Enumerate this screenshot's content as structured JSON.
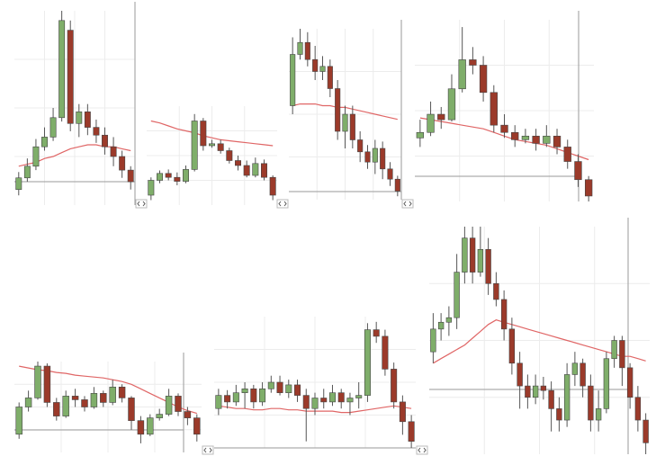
{
  "chart_data": [
    {
      "type": "candlestick",
      "ylim": [
        0,
        100
      ],
      "up_color": "#7fae6a",
      "down_color": "#9b3a2a",
      "ma_color": "#e06666",
      "open": [
        8,
        14,
        20,
        30,
        35,
        45,
        90,
        42,
        48,
        40,
        36,
        30,
        25,
        18
      ],
      "high": [
        17,
        24,
        34,
        40,
        50,
        100,
        95,
        52,
        52,
        44,
        40,
        35,
        28,
        20
      ],
      "low": [
        5,
        12,
        18,
        28,
        33,
        43,
        38,
        35,
        36,
        32,
        26,
        20,
        14,
        8
      ],
      "close": [
        14,
        20,
        30,
        35,
        45,
        95,
        42,
        48,
        40,
        36,
        30,
        25,
        18,
        12
      ],
      "ma": [
        20,
        21,
        22,
        24,
        25,
        27,
        29,
        30,
        31,
        31,
        30,
        30,
        29,
        28
      ]
    },
    {
      "type": "candlestick",
      "ylim": [
        0,
        100
      ],
      "up_color": "#7fae6a",
      "down_color": "#9b3a2a",
      "ma_color": "#e06666",
      "open": [
        10,
        25,
        32,
        28,
        24,
        36,
        85,
        60,
        62,
        55,
        45,
        40,
        30,
        42,
        28
      ],
      "high": [
        28,
        35,
        36,
        33,
        40,
        92,
        88,
        66,
        66,
        58,
        50,
        45,
        48,
        46,
        30
      ],
      "low": [
        5,
        22,
        25,
        20,
        22,
        34,
        55,
        58,
        52,
        42,
        35,
        28,
        28,
        25,
        5
      ],
      "close": [
        25,
        32,
        28,
        24,
        36,
        85,
        60,
        62,
        55,
        45,
        40,
        30,
        42,
        28,
        10
      ],
      "ma": [
        85,
        83,
        80,
        77,
        75,
        73,
        70,
        68,
        66,
        65,
        64,
        63,
        62,
        61,
        60
      ]
    },
    {
      "type": "candlestick",
      "ylim": [
        0,
        100
      ],
      "up_color": "#7fae6a",
      "down_color": "#9b3a2a",
      "ma_color": "#e06666",
      "open": [
        55,
        85,
        92,
        82,
        75,
        78,
        65,
        40,
        50,
        35,
        28,
        22,
        30,
        18,
        12
      ],
      "high": [
        95,
        100,
        98,
        90,
        84,
        82,
        70,
        55,
        55,
        40,
        32,
        35,
        34,
        22,
        14
      ],
      "low": [
        50,
        82,
        78,
        70,
        70,
        60,
        35,
        30,
        30,
        22,
        18,
        15,
        12,
        8,
        2
      ],
      "close": [
        85,
        92,
        82,
        75,
        78,
        65,
        40,
        50,
        35,
        28,
        22,
        30,
        18,
        12,
        5
      ],
      "ma": [
        55,
        56,
        56,
        56,
        55,
        55,
        54,
        54,
        53,
        52,
        51,
        50,
        49,
        48,
        47
      ]
    },
    {
      "type": "candlestick",
      "ylim": [
        0,
        100
      ],
      "up_color": "#7fae6a",
      "down_color": "#9b3a2a",
      "ma_color": "#e06666",
      "open": [
        35,
        38,
        48,
        45,
        62,
        78,
        75,
        60,
        42,
        38,
        34,
        36,
        32,
        36,
        30,
        22,
        12
      ],
      "high": [
        45,
        55,
        52,
        70,
        96,
        85,
        80,
        64,
        48,
        42,
        40,
        40,
        42,
        40,
        34,
        26,
        14
      ],
      "low": [
        30,
        36,
        40,
        44,
        60,
        70,
        55,
        38,
        35,
        30,
        32,
        28,
        30,
        26,
        18,
        8,
        0
      ],
      "close": [
        38,
        48,
        45,
        62,
        78,
        75,
        60,
        42,
        38,
        34,
        36,
        32,
        36,
        30,
        22,
        12,
        3
      ],
      "ma": [
        46,
        45,
        44,
        43,
        42,
        41,
        40,
        38,
        36,
        34,
        33,
        32,
        31,
        29,
        27,
        25,
        23
      ]
    },
    {
      "type": "candlestick",
      "ylim": [
        0,
        100
      ],
      "up_color": "#7fae6a",
      "down_color": "#9b3a2a",
      "ma_color": "#e06666",
      "open": [
        20,
        50,
        60,
        95,
        55,
        40,
        62,
        58,
        50,
        65,
        55,
        72,
        60,
        35,
        20,
        38,
        42,
        62,
        45,
        38
      ],
      "high": [
        55,
        68,
        100,
        98,
        60,
        68,
        70,
        62,
        72,
        68,
        80,
        75,
        62,
        40,
        42,
        48,
        70,
        65,
        50,
        42
      ],
      "low": [
        15,
        45,
        58,
        50,
        35,
        38,
        50,
        45,
        48,
        50,
        52,
        55,
        25,
        10,
        18,
        35,
        40,
        40,
        30,
        12
      ],
      "close": [
        50,
        60,
        95,
        55,
        40,
        62,
        58,
        50,
        65,
        55,
        72,
        60,
        35,
        20,
        38,
        42,
        62,
        45,
        38,
        20
      ],
      "ma": [
        95,
        93,
        91,
        90,
        88,
        87,
        85,
        84,
        83,
        82,
        80,
        78,
        75,
        70,
        65,
        60,
        55,
        50,
        46,
        43
      ]
    },
    {
      "type": "candlestick",
      "ylim": [
        0,
        100
      ],
      "up_color": "#7fae6a",
      "down_color": "#9b3a2a",
      "ma_color": "#e06666",
      "open": [
        30,
        40,
        35,
        42,
        45,
        35,
        45,
        50,
        42,
        48,
        40,
        30,
        38,
        35,
        42,
        35,
        38,
        40,
        90,
        85,
        60,
        35,
        20
      ],
      "high": [
        45,
        44,
        48,
        50,
        48,
        50,
        55,
        55,
        52,
        52,
        45,
        42,
        45,
        48,
        45,
        42,
        50,
        95,
        96,
        90,
        65,
        40,
        25
      ],
      "low": [
        25,
        30,
        32,
        30,
        30,
        32,
        42,
        40,
        38,
        35,
        5,
        25,
        30,
        32,
        30,
        25,
        30,
        35,
        80,
        55,
        30,
        10,
        0
      ],
      "close": [
        40,
        35,
        42,
        45,
        35,
        45,
        50,
        42,
        48,
        40,
        30,
        38,
        35,
        42,
        35,
        38,
        40,
        90,
        85,
        60,
        35,
        20,
        5
      ],
      "ma": [
        32,
        31,
        30,
        30,
        29,
        29,
        30,
        30,
        29,
        29,
        28,
        28,
        28,
        28,
        27,
        27,
        28,
        29,
        30,
        31,
        32,
        31,
        30
      ]
    },
    {
      "type": "candlestick",
      "ylim": [
        0,
        100
      ],
      "up_color": "#7fae6a",
      "down_color": "#9b3a2a",
      "ma_color": "#e06666",
      "open": [
        45,
        55,
        58,
        60,
        80,
        95,
        80,
        90,
        75,
        68,
        55,
        40,
        30,
        25,
        30,
        28,
        20,
        15,
        35,
        40,
        30,
        15,
        20,
        42,
        50,
        38,
        25,
        15
      ],
      "high": [
        62,
        62,
        65,
        88,
        100,
        100,
        100,
        95,
        80,
        72,
        60,
        45,
        35,
        35,
        34,
        32,
        25,
        40,
        45,
        42,
        35,
        28,
        45,
        52,
        52,
        40,
        30,
        18
      ],
      "low": [
        40,
        50,
        52,
        55,
        75,
        75,
        78,
        70,
        65,
        50,
        35,
        20,
        20,
        22,
        24,
        10,
        10,
        12,
        30,
        25,
        10,
        10,
        18,
        38,
        30,
        20,
        10,
        0
      ],
      "close": [
        55,
        58,
        60,
        80,
        95,
        80,
        90,
        75,
        68,
        55,
        40,
        30,
        25,
        30,
        28,
        20,
        15,
        35,
        40,
        30,
        15,
        20,
        42,
        50,
        38,
        25,
        15,
        5
      ],
      "ma": [
        40,
        42,
        44,
        46,
        48,
        51,
        54,
        57,
        59,
        58,
        57,
        56,
        55,
        54,
        53,
        52,
        51,
        50,
        49,
        48,
        47,
        46,
        45,
        44,
        43,
        43,
        42,
        41
      ]
    }
  ]
}
